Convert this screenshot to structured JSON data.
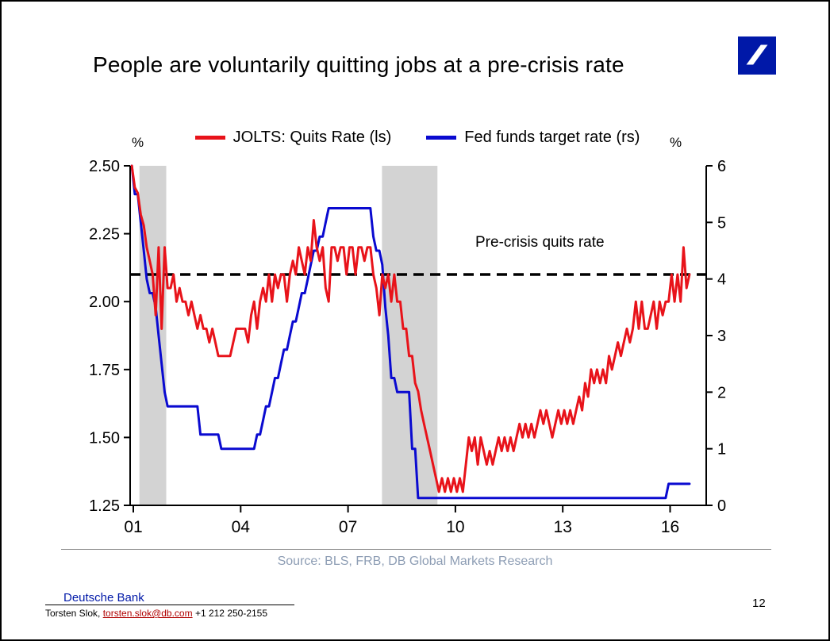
{
  "title": "People are voluntarily quitting jobs at a pre-crisis rate",
  "logo": {
    "brand": "Deutsche Bank",
    "color": "#0018a8"
  },
  "source": "Source: BLS, FRB, DB Global Markets Research",
  "footer": {
    "brand": "Deutsche Bank",
    "contact_name": "Torsten Slok, ",
    "contact_email": "torsten.slok@db.com",
    "contact_phone": "  +1 212 250-2155",
    "page_number": "12"
  },
  "chart_data": {
    "type": "line",
    "title": "People are voluntarily quitting jobs at a pre-crisis rate",
    "band_color": "#d3d3d3",
    "left_axis": {
      "unit": "%",
      "min": 1.25,
      "max": 2.5,
      "ticks": [
        "2.50",
        "2.25",
        "2.00",
        "1.75",
        "1.50",
        "1.25"
      ]
    },
    "right_axis": {
      "unit": "%",
      "min": 0,
      "max": 6,
      "ticks": [
        "6",
        "5",
        "4",
        "3",
        "2",
        "1",
        "0"
      ]
    },
    "x_axis": {
      "tick_labels": [
        "01",
        "04",
        "07",
        "10",
        "13",
        "16"
      ],
      "tick_years": [
        2001,
        2004,
        2007,
        2010,
        2013,
        2016
      ]
    },
    "recession_bands": [
      {
        "from": 2001.17,
        "to": 2001.92
      },
      {
        "from": 2007.95,
        "to": 2009.5
      }
    ],
    "reference_line": {
      "value": 2.1,
      "axis": "left",
      "label": "Pre-crisis quits rate",
      "style": "dashed",
      "color": "#000000"
    },
    "series": [
      {
        "name": "JOLTS: Quits Rate (ls)",
        "axis": "left",
        "color": "#e8131a",
        "start": "2000-12",
        "values": [
          2.5,
          2.42,
          2.4,
          2.32,
          2.28,
          2.2,
          2.15,
          2.1,
          1.95,
          2.2,
          1.9,
          2.2,
          2.05,
          2.05,
          2.1,
          2.0,
          2.05,
          2.0,
          2.0,
          1.95,
          2.0,
          1.95,
          1.9,
          1.95,
          1.9,
          1.9,
          1.85,
          1.9,
          1.85,
          1.8,
          1.8,
          1.8,
          1.8,
          1.8,
          1.85,
          1.9,
          1.9,
          1.9,
          1.9,
          1.85,
          1.95,
          2.0,
          1.9,
          2.0,
          2.05,
          2.0,
          2.1,
          2.0,
          2.1,
          2.05,
          2.1,
          2.1,
          2.0,
          2.1,
          2.15,
          2.1,
          2.2,
          2.15,
          2.1,
          2.2,
          2.15,
          2.3,
          2.2,
          2.15,
          2.2,
          2.05,
          2.0,
          2.2,
          2.2,
          2.15,
          2.2,
          2.2,
          2.1,
          2.2,
          2.2,
          2.1,
          2.2,
          2.2,
          2.15,
          2.2,
          2.2,
          2.1,
          2.05,
          1.95,
          2.1,
          2.05,
          2.1,
          2.0,
          2.1,
          2.0,
          2.0,
          1.9,
          1.9,
          1.8,
          1.8,
          1.7,
          1.67,
          1.6,
          1.55,
          1.5,
          1.45,
          1.4,
          1.35,
          1.3,
          1.35,
          1.3,
          1.35,
          1.3,
          1.35,
          1.3,
          1.35,
          1.3,
          1.4,
          1.5,
          1.45,
          1.5,
          1.4,
          1.5,
          1.45,
          1.4,
          1.45,
          1.4,
          1.45,
          1.5,
          1.45,
          1.5,
          1.45,
          1.5,
          1.45,
          1.5,
          1.55,
          1.5,
          1.55,
          1.5,
          1.55,
          1.5,
          1.55,
          1.6,
          1.55,
          1.6,
          1.55,
          1.5,
          1.55,
          1.6,
          1.55,
          1.6,
          1.55,
          1.6,
          1.55,
          1.6,
          1.65,
          1.6,
          1.7,
          1.65,
          1.75,
          1.7,
          1.75,
          1.7,
          1.75,
          1.7,
          1.8,
          1.75,
          1.8,
          1.85,
          1.8,
          1.85,
          1.9,
          1.85,
          1.9,
          2.0,
          1.9,
          2.0,
          1.9,
          1.9,
          1.95,
          2.0,
          1.9,
          2.0,
          1.95,
          2.0,
          2.0,
          2.1,
          2.0,
          2.1,
          2.0,
          2.2,
          2.05,
          2.1
        ]
      },
      {
        "name": "Fed funds target rate (rs)",
        "axis": "right",
        "color": "#0a0ad0",
        "start": "2000-12",
        "values": [
          6.0,
          5.5,
          5.5,
          5.0,
          4.5,
          4.0,
          3.75,
          3.75,
          3.5,
          3.0,
          2.5,
          2.0,
          1.75,
          1.75,
          1.75,
          1.75,
          1.75,
          1.75,
          1.75,
          1.75,
          1.75,
          1.75,
          1.75,
          1.25,
          1.25,
          1.25,
          1.25,
          1.25,
          1.25,
          1.25,
          1.0,
          1.0,
          1.0,
          1.0,
          1.0,
          1.0,
          1.0,
          1.0,
          1.0,
          1.0,
          1.0,
          1.0,
          1.25,
          1.25,
          1.5,
          1.75,
          1.75,
          2.0,
          2.25,
          2.25,
          2.5,
          2.75,
          2.75,
          3.0,
          3.25,
          3.25,
          3.5,
          3.75,
          3.75,
          4.0,
          4.25,
          4.5,
          4.5,
          4.75,
          4.75,
          5.0,
          5.25,
          5.25,
          5.25,
          5.25,
          5.25,
          5.25,
          5.25,
          5.25,
          5.25,
          5.25,
          5.25,
          5.25,
          5.25,
          5.25,
          5.25,
          4.75,
          4.5,
          4.5,
          4.25,
          3.5,
          3.0,
          2.25,
          2.25,
          2.0,
          2.0,
          2.0,
          2.0,
          2.0,
          1.0,
          1.0,
          0.13,
          0.13,
          0.13,
          0.13,
          0.13,
          0.13,
          0.13,
          0.13,
          0.13,
          0.13,
          0.13,
          0.13,
          0.13,
          0.13,
          0.13,
          0.13,
          0.13,
          0.13,
          0.13,
          0.13,
          0.13,
          0.13,
          0.13,
          0.13,
          0.13,
          0.13,
          0.13,
          0.13,
          0.13,
          0.13,
          0.13,
          0.13,
          0.13,
          0.13,
          0.13,
          0.13,
          0.13,
          0.13,
          0.13,
          0.13,
          0.13,
          0.13,
          0.13,
          0.13,
          0.13,
          0.13,
          0.13,
          0.13,
          0.13,
          0.13,
          0.13,
          0.13,
          0.13,
          0.13,
          0.13,
          0.13,
          0.13,
          0.13,
          0.13,
          0.13,
          0.13,
          0.13,
          0.13,
          0.13,
          0.13,
          0.13,
          0.13,
          0.13,
          0.13,
          0.13,
          0.13,
          0.13,
          0.13,
          0.13,
          0.13,
          0.13,
          0.13,
          0.13,
          0.13,
          0.13,
          0.13,
          0.13,
          0.13,
          0.13,
          0.38,
          0.38,
          0.38,
          0.38,
          0.38,
          0.38,
          0.38,
          0.38
        ]
      }
    ]
  }
}
